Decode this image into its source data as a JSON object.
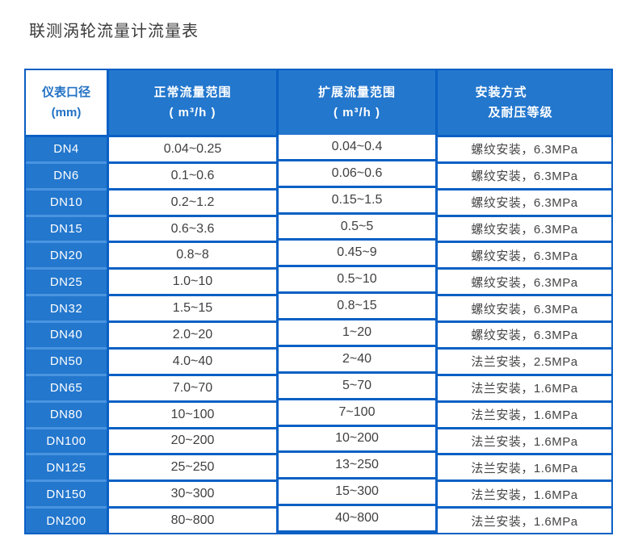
{
  "page": {
    "title": "联测涡轮流量计流量表"
  },
  "colors": {
    "cell_blue": "#2377cd",
    "border_blue": "#0a60c4",
    "light_divider_blue": "#4a94e0",
    "header_text_blue": "#2171c4",
    "data_text": "#3f3f3f"
  },
  "table": {
    "header": {
      "col1": [
        "仪表口径",
        "(mm)"
      ],
      "col2": [
        "正常流量范围",
        "( m³/h )"
      ],
      "col3": [
        "扩展流量范围",
        "( m³/h )"
      ],
      "col4": [
        "安装方式",
        "及耐压等级"
      ]
    },
    "rows": [
      {
        "dn": "DN4",
        "normal": "0.04~0.25",
        "extended": "0.04~0.4",
        "install": "螺纹安装，6.3MPa"
      },
      {
        "dn": "DN6",
        "normal": "0.1~0.6",
        "extended": "0.06~0.6",
        "install": "螺纹安装，6.3MPa"
      },
      {
        "dn": "DN10",
        "normal": "0.2~1.2",
        "extended": "0.15~1.5",
        "install": "螺纹安装，6.3MPa"
      },
      {
        "dn": "DN15",
        "normal": "0.6~3.6",
        "extended": "0.5~5",
        "install": "螺纹安装，6.3MPa"
      },
      {
        "dn": "DN20",
        "normal": "0.8~8",
        "extended": "0.45~9",
        "install": "螺纹安装，6.3MPa"
      },
      {
        "dn": "DN25",
        "normal": "1.0~10",
        "extended": "0.5~10",
        "install": "螺纹安装，6.3MPa"
      },
      {
        "dn": "DN32",
        "normal": "1.5~15",
        "extended": "0.8~15",
        "install": "螺纹安装，6.3MPa"
      },
      {
        "dn": "DN40",
        "normal": "2.0~20",
        "extended": "1~20",
        "install": "螺纹安装，6.3MPa"
      },
      {
        "dn": "DN50",
        "normal": "4.0~40",
        "extended": "2~40",
        "install": "法兰安装，2.5MPa"
      },
      {
        "dn": "DN65",
        "normal": "7.0~70",
        "extended": "5~70",
        "install": "法兰安装，1.6MPa"
      },
      {
        "dn": "DN80",
        "normal": "10~100",
        "extended": "7~100",
        "install": "法兰安装，1.6MPa"
      },
      {
        "dn": "DN100",
        "normal": "20~200",
        "extended": "10~200",
        "install": "法兰安装，1.6MPa"
      },
      {
        "dn": "DN125",
        "normal": "25~250",
        "extended": "13~250",
        "install": "法兰安装，1.6MPa"
      },
      {
        "dn": "DN150",
        "normal": "30~300",
        "extended": "15~300",
        "install": "法兰安装，1.6MPa"
      },
      {
        "dn": "DN200",
        "normal": "80~800",
        "extended": "40~800",
        "install": "法兰安装，1.6MPa"
      }
    ]
  }
}
